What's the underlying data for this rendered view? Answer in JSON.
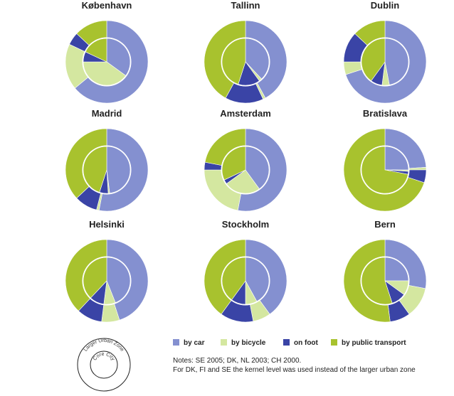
{
  "chart_data": {
    "type": "pie",
    "subtype": "nested-donut",
    "categories": [
      "by car",
      "by bicycle",
      "on foot",
      "by public transport"
    ],
    "colors": {
      "by car": "#8490d0",
      "by bicycle": "#d4e7a0",
      "on foot": "#3a44a6",
      "by public transport": "#a8c22e"
    },
    "rings": [
      "Larger Urban Zone",
      "Core City"
    ],
    "cities": [
      {
        "name": "København",
        "lz": [
          64,
          18,
          5,
          13
        ],
        "cc": [
          35,
          40,
          7,
          18
        ]
      },
      {
        "name": "Tallinn",
        "lz": [
          42,
          1,
          15,
          42
        ],
        "cc": [
          38,
          2,
          15,
          45
        ]
      },
      {
        "name": "Dublin",
        "lz": [
          70,
          5,
          12,
          13
        ],
        "cc": [
          47,
          5,
          8,
          40
        ]
      },
      {
        "name": "Madrid",
        "lz": [
          53,
          1,
          9,
          37
        ],
        "cc": [
          48,
          1,
          6,
          45
        ]
      },
      {
        "name": "Amsterdam",
        "lz": [
          53,
          22,
          3,
          22
        ],
        "cc": [
          40,
          25,
          3,
          32
        ]
      },
      {
        "name": "Bratislava",
        "lz": [
          24,
          1,
          5,
          70
        ],
        "cc": [
          25,
          1,
          2,
          72
        ]
      },
      {
        "name": "Helsinki",
        "lz": [
          45,
          7,
          10,
          38
        ],
        "cc": [
          44,
          8,
          10,
          38
        ]
      },
      {
        "name": "Stockholm",
        "lz": [
          40,
          7,
          13,
          40
        ],
        "cc": [
          42,
          8,
          10,
          40
        ]
      },
      {
        "name": "Bern",
        "lz": [
          28,
          12,
          8,
          52
        ],
        "cc": [
          25,
          10,
          10,
          55
        ]
      }
    ]
  },
  "legend": [
    {
      "label": "by car",
      "color": "#8490d0"
    },
    {
      "label": "by bicycle",
      "color": "#d4e7a0"
    },
    {
      "label": "on foot",
      "color": "#3a44a6"
    },
    {
      "label": "by public transport",
      "color": "#a8c22e"
    }
  ],
  "zone_diagram": {
    "outer_label": "Larger Urban Zone",
    "inner_label": "Core City"
  },
  "notes": [
    "Notes:   SE 2005; DK, NL 2003; CH 2000.",
    "For DK, FI and SE the kernel level was used instead of the larger urban zone"
  ]
}
